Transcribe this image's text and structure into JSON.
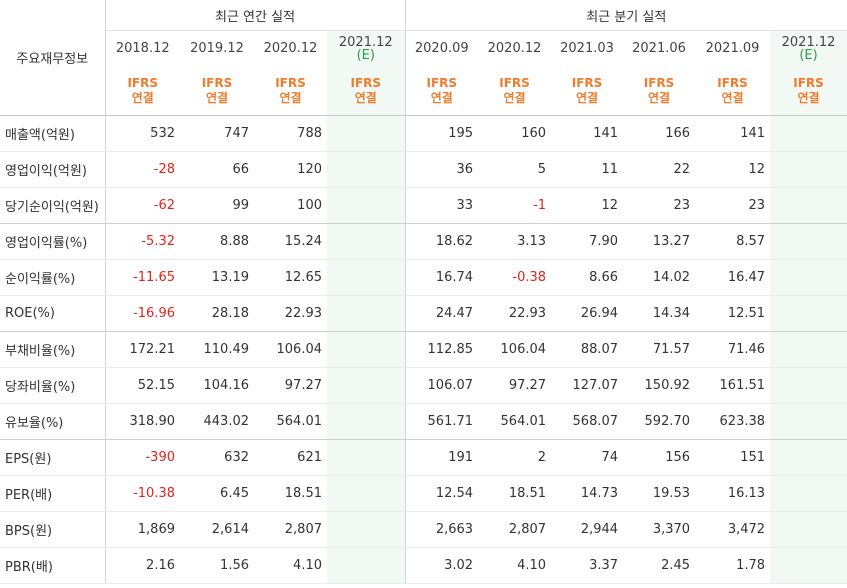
{
  "table": {
    "row_header": "주요재무정보",
    "groups": {
      "annual": "최근 연간 실적",
      "quarterly": "최근 분기 실적"
    },
    "annual_periods": [
      {
        "label": "2018.12",
        "sub": ""
      },
      {
        "label": "2019.12",
        "sub": ""
      },
      {
        "label": "2020.12",
        "sub": ""
      },
      {
        "label": "2021.12",
        "sub": "(E)"
      }
    ],
    "quarter_periods": [
      {
        "label": "2020.09",
        "sub": ""
      },
      {
        "label": "2020.12",
        "sub": ""
      },
      {
        "label": "2021.03",
        "sub": ""
      },
      {
        "label": "2021.06",
        "sub": ""
      },
      {
        "label": "2021.09",
        "sub": ""
      },
      {
        "label": "2021.12",
        "sub": "(E)"
      }
    ],
    "basis_line1": "IFRS",
    "basis_line2": "연결",
    "rows": [
      {
        "label": "매출액(억원)",
        "annual": [
          "532",
          "747",
          "788",
          ""
        ],
        "quarter": [
          "195",
          "160",
          "141",
          "166",
          "141",
          ""
        ]
      },
      {
        "label": "영업이익(억원)",
        "annual": [
          "-28",
          "66",
          "120",
          ""
        ],
        "quarter": [
          "36",
          "5",
          "11",
          "22",
          "12",
          ""
        ]
      },
      {
        "label": "당기순이익(억원)",
        "annual": [
          "-62",
          "99",
          "100",
          ""
        ],
        "quarter": [
          "33",
          "-1",
          "12",
          "23",
          "23",
          ""
        ]
      },
      {
        "label": "영업이익률(%)",
        "annual": [
          "-5.32",
          "8.88",
          "15.24",
          ""
        ],
        "quarter": [
          "18.62",
          "3.13",
          "7.90",
          "13.27",
          "8.57",
          ""
        ]
      },
      {
        "label": "순이익률(%)",
        "annual": [
          "-11.65",
          "13.19",
          "12.65",
          ""
        ],
        "quarter": [
          "16.74",
          "-0.38",
          "8.66",
          "14.02",
          "16.47",
          ""
        ]
      },
      {
        "label": "ROE(%)",
        "annual": [
          "-16.96",
          "28.18",
          "22.93",
          ""
        ],
        "quarter": [
          "24.47",
          "22.93",
          "26.94",
          "14.34",
          "12.51",
          ""
        ]
      },
      {
        "label": "부채비율(%)",
        "annual": [
          "172.21",
          "110.49",
          "106.04",
          ""
        ],
        "quarter": [
          "112.85",
          "106.04",
          "88.07",
          "71.57",
          "71.46",
          ""
        ]
      },
      {
        "label": "당좌비율(%)",
        "annual": [
          "52.15",
          "104.16",
          "97.27",
          ""
        ],
        "quarter": [
          "106.07",
          "97.27",
          "127.07",
          "150.92",
          "161.51",
          ""
        ]
      },
      {
        "label": "유보율(%)",
        "annual": [
          "318.90",
          "443.02",
          "564.01",
          ""
        ],
        "quarter": [
          "561.71",
          "564.01",
          "568.07",
          "592.70",
          "623.38",
          ""
        ]
      },
      {
        "label": "EPS(원)",
        "annual": [
          "-390",
          "632",
          "621",
          ""
        ],
        "quarter": [
          "191",
          "2",
          "74",
          "156",
          "151",
          ""
        ]
      },
      {
        "label": "PER(배)",
        "annual": [
          "-10.38",
          "6.45",
          "18.51",
          ""
        ],
        "quarter": [
          "12.54",
          "18.51",
          "14.73",
          "19.53",
          "16.13",
          ""
        ]
      },
      {
        "label": "BPS(원)",
        "annual": [
          "1,869",
          "2,614",
          "2,807",
          ""
        ],
        "quarter": [
          "2,663",
          "2,807",
          "2,944",
          "3,370",
          "3,472",
          ""
        ]
      },
      {
        "label": "PBR(배)",
        "annual": [
          "2.16",
          "1.56",
          "4.10",
          ""
        ],
        "quarter": [
          "3.02",
          "4.10",
          "3.37",
          "2.45",
          "1.78",
          ""
        ]
      }
    ],
    "colors": {
      "negative": "#e0231d",
      "basis": "#f07b2c",
      "estimate_bg": "#f2f9f4"
    }
  }
}
